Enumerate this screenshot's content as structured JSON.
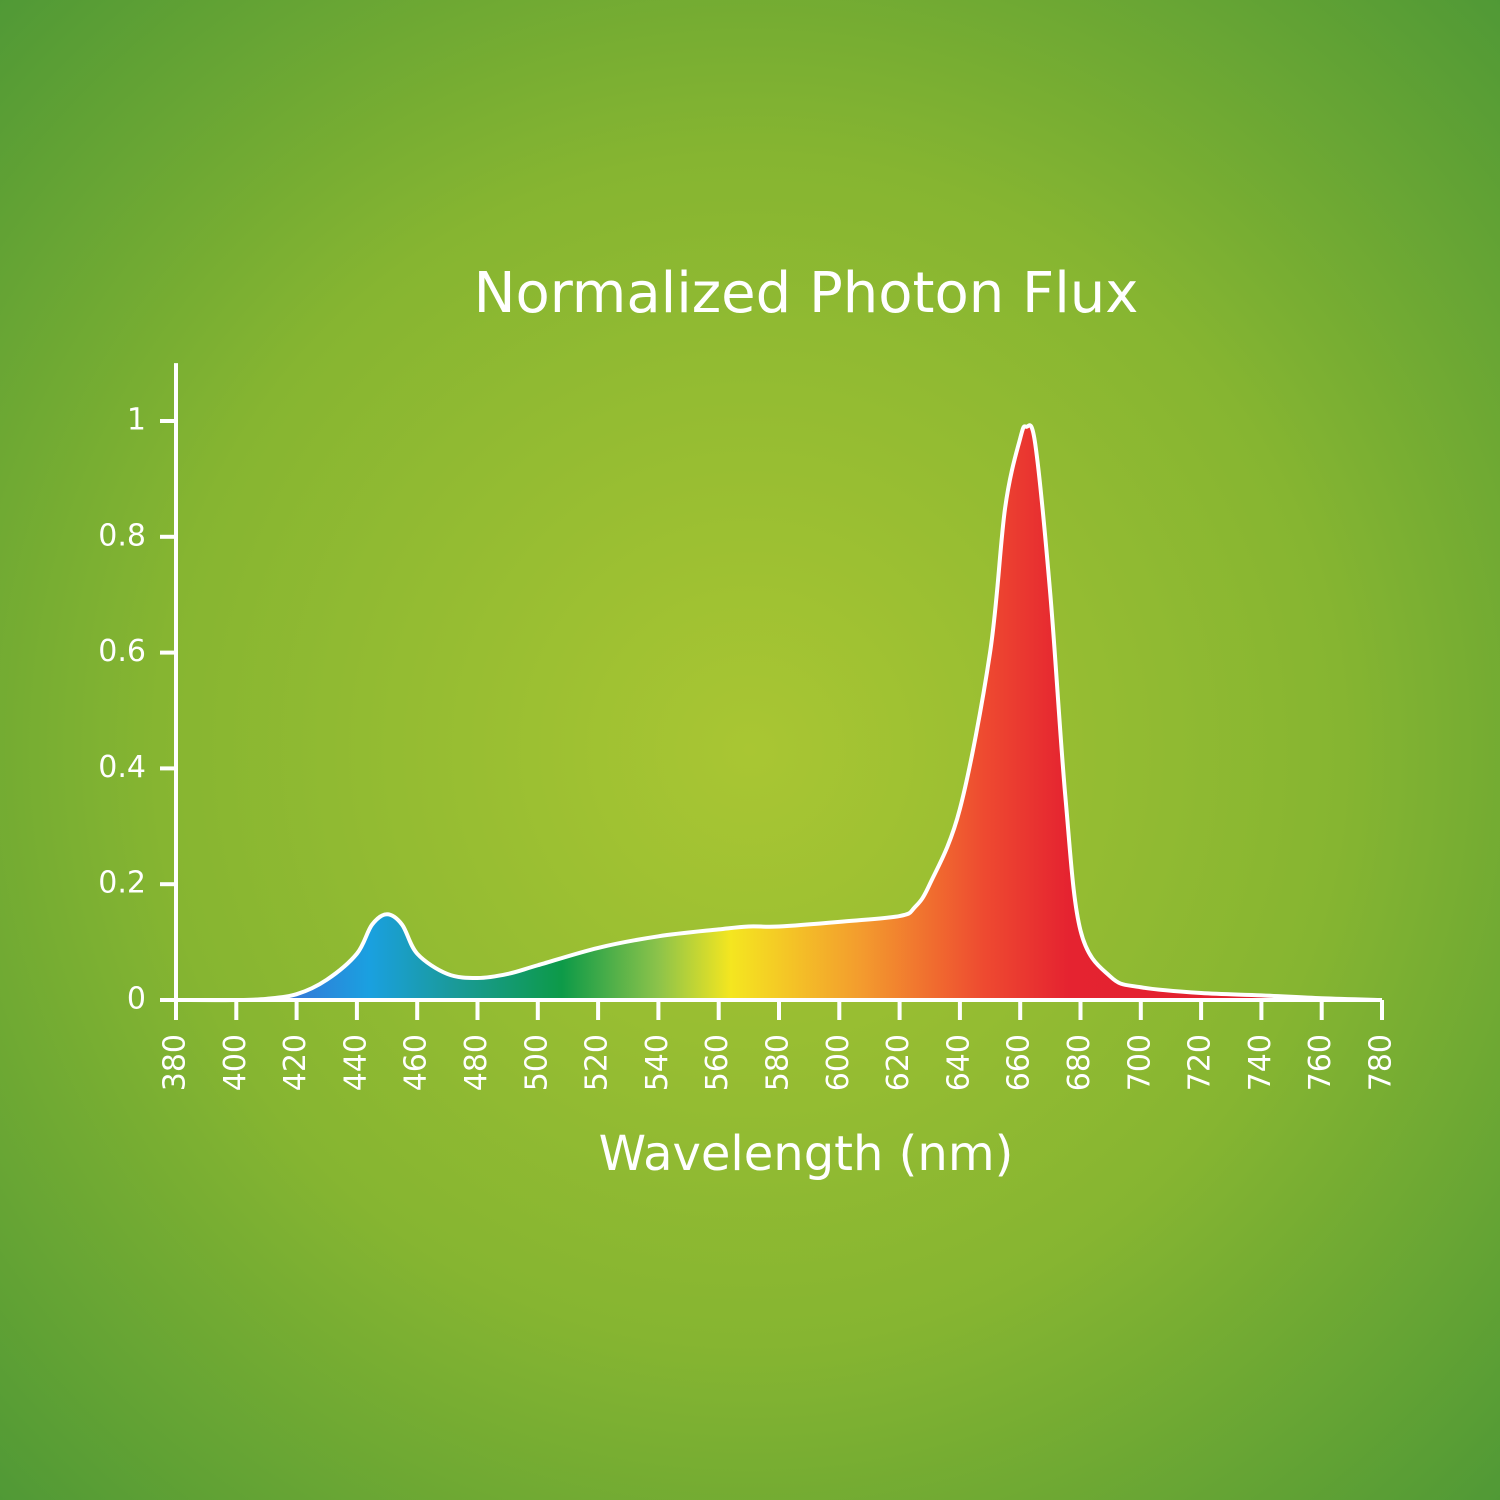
{
  "chart_data": {
    "type": "area",
    "title": "Normalized Photon Flux",
    "x_label": "Wavelength (nm)",
    "x": [
      380,
      400,
      410,
      420,
      430,
      440,
      445,
      450,
      455,
      460,
      470,
      480,
      490,
      500,
      520,
      540,
      560,
      570,
      580,
      600,
      620,
      625,
      630,
      640,
      650,
      655,
      660,
      662,
      665,
      670,
      675,
      680,
      690,
      700,
      720,
      740,
      760,
      780
    ],
    "values": [
      0,
      0,
      0.002,
      0.01,
      0.035,
      0.08,
      0.13,
      0.148,
      0.13,
      0.08,
      0.045,
      0.038,
      0.045,
      0.06,
      0.09,
      0.11,
      0.122,
      0.127,
      0.127,
      0.135,
      0.145,
      0.16,
      0.2,
      0.33,
      0.6,
      0.85,
      0.97,
      0.99,
      0.96,
      0.7,
      0.35,
      0.12,
      0.04,
      0.022,
      0.012,
      0.008,
      0.003,
      0
    ],
    "xlim": [
      380,
      780
    ],
    "xticks": [
      380,
      400,
      420,
      440,
      460,
      480,
      500,
      520,
      540,
      560,
      580,
      600,
      620,
      640,
      660,
      680,
      700,
      720,
      740,
      760,
      780
    ],
    "ylim": [
      0,
      1.1
    ],
    "yticks": [
      0,
      0.2,
      0.4,
      0.6,
      0.8,
      1
    ]
  }
}
